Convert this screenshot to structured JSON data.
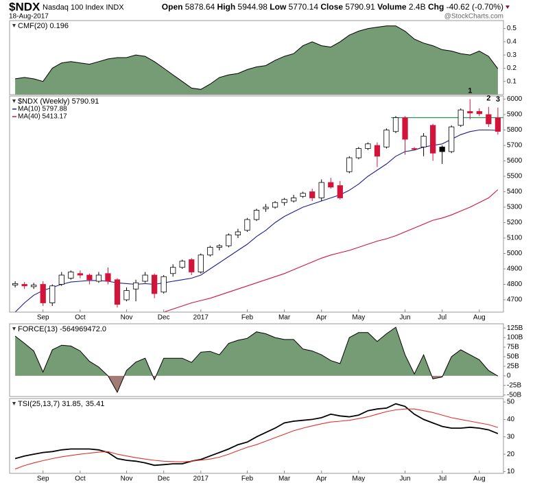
{
  "header": {
    "symbol": "$NDX",
    "name": "Nasdaq 100 Index",
    "exchange": "INDX",
    "date": "18-Aug-2017",
    "watermark": "@StockCharts.com",
    "open_label": "Open",
    "high_label": "High",
    "low_label": "Low",
    "close_label": "Close",
    "volume_label": "Volume",
    "volume": "2.4B",
    "chg_label": "Chg",
    "chg": "-40.62 (-0.70%)"
  },
  "chart_data": [
    {
      "type": "area",
      "title": "CMF(20) 0.196",
      "color": "#759c75",
      "line_color": "#000000",
      "categories": [
        null,
        null,
        null,
        null,
        null,
        null,
        null,
        null,
        null,
        null,
        null,
        null,
        null,
        null,
        null,
        null,
        null,
        null,
        null,
        null,
        null,
        null,
        null,
        null,
        null,
        null,
        null,
        null,
        null,
        null,
        null,
        null,
        null,
        null,
        null,
        null,
        null,
        null,
        null,
        null,
        null,
        null,
        null,
        null,
        null,
        null,
        null,
        null,
        null,
        null,
        null,
        null,
        null
      ],
      "values": [
        0.12,
        0.13,
        0.12,
        0.1,
        0.2,
        0.24,
        0.25,
        0.24,
        0.23,
        0.25,
        0.27,
        0.28,
        0.28,
        0.3,
        0.29,
        0.25,
        0.2,
        0.15,
        0.1,
        0.05,
        0.04,
        0.08,
        0.13,
        0.15,
        0.16,
        0.19,
        0.21,
        0.22,
        0.26,
        0.29,
        0.31,
        0.37,
        0.4,
        0.37,
        0.36,
        0.4,
        0.45,
        0.48,
        0.5,
        0.51,
        0.52,
        0.52,
        0.48,
        0.42,
        0.39,
        0.37,
        0.34,
        0.33,
        0.31,
        0.3,
        0.33,
        0.29,
        0.196
      ],
      "xlim": [
        -0.6,
        52.6
      ],
      "ylim": [
        0,
        0.56
      ],
      "yticks": [
        0.1,
        0.2,
        0.3,
        0.4,
        0.5
      ]
    },
    {
      "type": "candlestick",
      "title": "$NDX (Weekly) 5790.91",
      "rising_color": "#000000",
      "falling_color": "#d2143a",
      "categories": [
        null,
        null,
        null,
        null,
        null,
        null,
        null,
        null,
        null,
        null,
        null,
        null,
        null,
        null,
        null,
        null,
        null,
        null,
        null,
        null,
        null,
        null,
        null,
        null,
        null,
        null,
        null,
        null,
        null,
        null,
        null,
        null,
        null,
        null,
        null,
        null,
        null,
        null,
        null,
        null,
        null,
        null,
        null,
        null,
        null,
        null,
        null,
        null,
        null,
        null,
        null,
        null,
        null
      ],
      "open": [
        4795,
        4800,
        4785,
        4800,
        4680,
        4800,
        4840,
        4870,
        4860,
        4820,
        4870,
        4830,
        4700,
        4770,
        4820,
        4860,
        4750,
        4870,
        4910,
        4960,
        4880,
        4990,
        5040,
        5050,
        5120,
        5150,
        5220,
        5290,
        5300,
        5330,
        5340,
        5370,
        5400,
        5360,
        5460,
        5440,
        5530,
        5620,
        5680,
        5700,
        5690,
        5790,
        5880,
        5680,
        5690,
        5830,
        5690,
        5660,
        5830,
        5920,
        5920,
        5900,
        5878.64
      ],
      "high": [
        4820,
        4815,
        4810,
        4820,
        4800,
        4880,
        4890,
        4890,
        4870,
        4880,
        4910,
        4840,
        4780,
        4830,
        4880,
        4870,
        4860,
        4930,
        4960,
        4970,
        5000,
        5050,
        5060,
        5130,
        5160,
        5230,
        5290,
        5320,
        5340,
        5360,
        5380,
        5400,
        5420,
        5480,
        5490,
        5470,
        5630,
        5690,
        5720,
        5720,
        5810,
        5890,
        5890,
        5690,
        5780,
        5840,
        5700,
        5830,
        5940,
        6000,
        5940,
        5950,
        5944.98
      ],
      "low": [
        4780,
        4770,
        4770,
        4660,
        4660,
        4790,
        4830,
        4840,
        4800,
        4810,
        4800,
        4650,
        4690,
        4690,
        4810,
        4710,
        4740,
        4850,
        4900,
        4860,
        4870,
        4980,
        5020,
        5040,
        5100,
        5140,
        5210,
        5270,
        5290,
        5310,
        5330,
        5360,
        5340,
        5340,
        5420,
        5350,
        5520,
        5610,
        5670,
        5560,
        5680,
        5780,
        5640,
        5670,
        5630,
        5600,
        5580,
        5650,
        5820,
        5870,
        5890,
        5820,
        5770.14
      ],
      "close": [
        4805,
        4790,
        4795,
        4680,
        4790,
        4860,
        4880,
        4860,
        4830,
        4860,
        4820,
        4670,
        4760,
        4810,
        4860,
        4740,
        4850,
        4910,
        4950,
        4880,
        4990,
        5040,
        5050,
        5120,
        5140,
        5220,
        5280,
        5300,
        5330,
        5350,
        5360,
        5390,
        5360,
        5460,
        5430,
        5360,
        5620,
        5680,
        5710,
        5630,
        5800,
        5880,
        5740,
        5675,
        5760,
        5650,
        5660,
        5820,
        5930,
        5910,
        5905,
        5840,
        5790.91
      ],
      "series": [
        {
          "name": "MA(10) 5797.88",
          "color": "#1c1c8c",
          "values": [
            4620,
            4680,
            4730,
            4760,
            4780,
            4800,
            4815,
            4820,
            4825,
            4825,
            4820,
            4810,
            4805,
            4800,
            4805,
            4800,
            4810,
            4820,
            4830,
            4840,
            4860,
            4900,
            4940,
            4980,
            5020,
            5060,
            5110,
            5150,
            5200,
            5240,
            5270,
            5300,
            5320,
            5340,
            5360,
            5380,
            5410,
            5450,
            5500,
            5540,
            5580,
            5630,
            5660,
            5670,
            5690,
            5700,
            5710,
            5740,
            5770,
            5790,
            5800,
            5800,
            5797.88
          ]
        },
        {
          "name": "MA(40) 5413.17",
          "color": "#d2143a",
          "values": [
            null,
            null,
            null,
            null,
            null,
            null,
            null,
            null,
            null,
            null,
            null,
            null,
            null,
            null,
            null,
            null,
            4620,
            4640,
            4660,
            4680,
            4695,
            4710,
            4730,
            4750,
            4770,
            4790,
            4810,
            4830,
            4850,
            4870,
            4895,
            4920,
            4945,
            4970,
            4990,
            5005,
            5020,
            5040,
            5060,
            5080,
            5095,
            5115,
            5140,
            5165,
            5190,
            5215,
            5230,
            5250,
            5275,
            5300,
            5330,
            5360,
            5413.17
          ]
        }
      ],
      "reference_line": {
        "value": 5880,
        "start": 40.5,
        "color": "#2e8b57"
      },
      "annotations": [
        {
          "text": "1",
          "x": 49,
          "color": "#e0302a"
        },
        {
          "text": "2",
          "x": 51,
          "color": "#e0302a"
        },
        {
          "text": "3",
          "x": 52,
          "color": "#e0302a"
        }
      ],
      "xlim": [
        -0.6,
        52.6
      ],
      "ylim": [
        4620,
        6020
      ],
      "yticks": [
        4700,
        4800,
        4900,
        5000,
        5100,
        5200,
        5300,
        5400,
        5500,
        5600,
        5700,
        5800,
        5900,
        6000
      ],
      "xticks": [
        {
          "value": 3,
          "label": "Sep"
        },
        {
          "value": 7,
          "label": "Oct"
        },
        {
          "value": 12,
          "label": "Nov"
        },
        {
          "value": 16,
          "label": "Dec"
        },
        {
          "value": 20,
          "label": "2017"
        },
        {
          "value": 25,
          "label": "Feb"
        },
        {
          "value": 29,
          "label": "Mar"
        },
        {
          "value": 33,
          "label": "Apr"
        },
        {
          "value": 37,
          "label": "May"
        },
        {
          "value": 42,
          "label": "Jun"
        },
        {
          "value": 46,
          "label": "Jul"
        },
        {
          "value": 50,
          "label": "Aug"
        }
      ]
    },
    {
      "type": "area",
      "title": "FORCE(13) -564969472.0",
      "color": "#759c75",
      "negative_color": "#a07c74",
      "line_color": "#000000",
      "categories": [
        null,
        null,
        null,
        null,
        null,
        null,
        null,
        null,
        null,
        null,
        null,
        null,
        null,
        null,
        null,
        null,
        null,
        null,
        null,
        null,
        null,
        null,
        null,
        null,
        null,
        null,
        null,
        null,
        null,
        null,
        null,
        null,
        null,
        null,
        null,
        null,
        null,
        null,
        null,
        null,
        null,
        null,
        null,
        null,
        null,
        null,
        null,
        null,
        null,
        null,
        null,
        null,
        null
      ],
      "values": [
        104,
        85,
        65,
        10,
        68,
        80,
        78,
        65,
        38,
        23,
        0,
        -43,
        14,
        36,
        46,
        -10,
        46,
        46,
        46,
        35,
        62,
        64,
        55,
        85,
        93,
        98,
        115,
        110,
        100,
        95,
        95,
        70,
        65,
        55,
        40,
        32,
        100,
        113,
        113,
        90,
        110,
        127,
        55,
        5,
        55,
        -8,
        -3,
        50,
        68,
        55,
        42,
        14,
        -0.56
      ],
      "xlim": [
        -0.6,
        52.6
      ],
      "ylim": [
        -54,
        136
      ],
      "yticks": [
        {
          "value": 125,
          "label": "125B"
        },
        {
          "value": 100,
          "label": "100B"
        },
        {
          "value": 75,
          "label": "75B"
        },
        {
          "value": 50,
          "label": "50B"
        },
        {
          "value": 25,
          "label": "25B"
        },
        0,
        {
          "value": -25,
          "label": "-25B"
        },
        {
          "value": -50,
          "label": "-50B"
        }
      ]
    },
    {
      "type": "line",
      "categories": [
        null,
        null,
        null,
        null,
        null,
        null,
        null,
        null,
        null,
        null,
        null,
        null,
        null,
        null,
        null,
        null,
        null,
        null,
        null,
        null,
        null,
        null,
        null,
        null,
        null,
        null,
        null,
        null,
        null,
        null,
        null,
        null,
        null,
        null,
        null,
        null,
        null,
        null,
        null,
        null,
        null,
        null,
        null,
        null,
        null,
        null,
        null,
        null,
        null,
        null,
        null,
        null,
        null
      ],
      "series": [
        {
          "name": "TSI(25,13,7) 31.85,",
          "color": "#000000",
          "values": [
            17.5,
            19,
            20,
            21,
            21.5,
            22.5,
            23,
            23,
            23,
            22.5,
            21,
            17.5,
            16.5,
            16,
            15,
            13.6,
            14,
            14.5,
            14.5,
            16,
            17,
            19,
            21,
            23,
            25.5,
            27,
            30,
            32.5,
            35,
            38,
            39,
            39.5,
            40,
            41,
            43,
            42,
            41.5,
            42.5,
            45,
            46,
            46.5,
            49,
            47.5,
            43,
            40,
            38,
            36,
            35,
            35,
            35.5,
            35,
            34,
            31.85
          ]
        },
        {
          "name": "35.41",
          "color": "#e0302a",
          "values": [
            11.5,
            13.5,
            15,
            16.3,
            17.5,
            18.5,
            19.3,
            20,
            20.6,
            21.2,
            21.5,
            20,
            19,
            18,
            17.2,
            16.5,
            16,
            15.8,
            15.6,
            16,
            16.6,
            17.2,
            18.3,
            20,
            22,
            24,
            25.5,
            27.5,
            29.5,
            31.5,
            33.5,
            35,
            36.3,
            37.5,
            38.5,
            39,
            39.5,
            40.5,
            41.5,
            43,
            44.5,
            45.5,
            46,
            46,
            45,
            44,
            42.5,
            41,
            40,
            39,
            38,
            37,
            35.41
          ]
        }
      ],
      "xlim": [
        -0.6,
        52.6
      ],
      "ylim": [
        9,
        52
      ],
      "yticks": [
        10,
        20,
        30,
        40,
        50
      ],
      "xticks": [
        {
          "value": 3,
          "label": "Sep"
        },
        {
          "value": 7,
          "label": "Oct"
        },
        {
          "value": 12,
          "label": "Nov"
        },
        {
          "value": 16,
          "label": "Dec"
        },
        {
          "value": 20,
          "label": "2017"
        },
        {
          "value": 25,
          "label": "Feb"
        },
        {
          "value": 29,
          "label": "Mar"
        },
        {
          "value": 33,
          "label": "Apr"
        },
        {
          "value": 37,
          "label": "May"
        },
        {
          "value": 42,
          "label": "Jun"
        },
        {
          "value": 46,
          "label": "Jul"
        },
        {
          "value": 50,
          "label": "Aug"
        }
      ]
    }
  ]
}
